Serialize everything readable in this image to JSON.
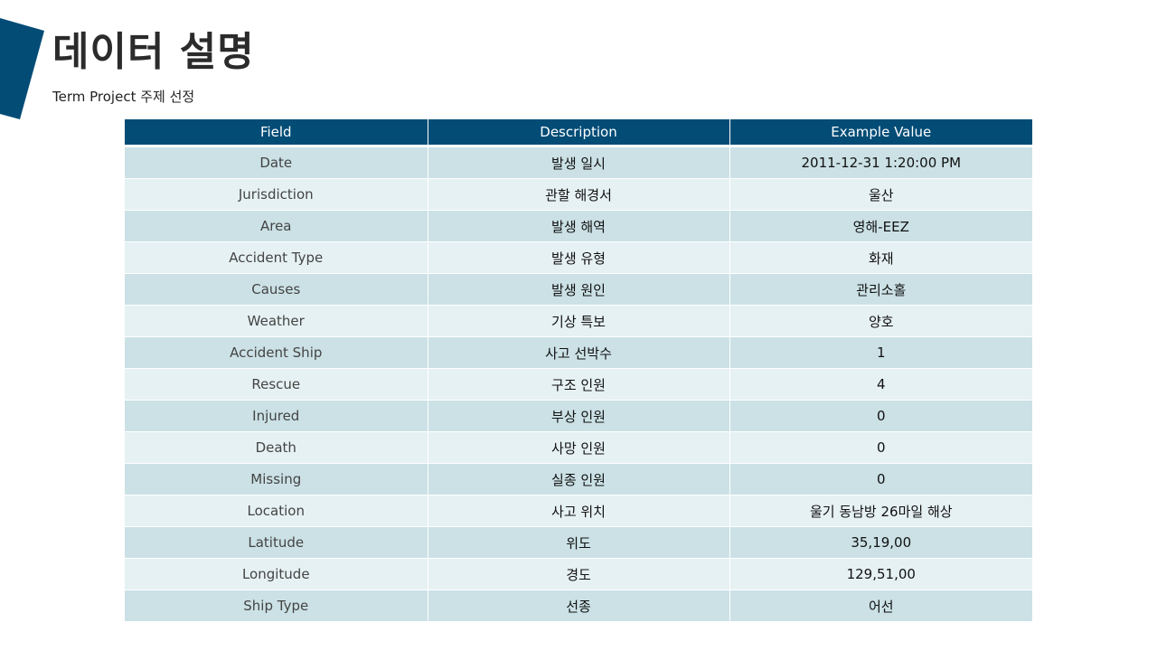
{
  "slide": {
    "title": "데이터 설명",
    "subtitle": "Term Project 주제 선정",
    "accent_color": "#024c76"
  },
  "table": {
    "headers": [
      "Field",
      "Description",
      "Example Value"
    ],
    "rows": [
      {
        "field": "Date",
        "description": "발생 일시",
        "example": "2011-12-31  1:20:00 PM"
      },
      {
        "field": "Jurisdiction",
        "description": "관할 해경서",
        "example": "울산"
      },
      {
        "field": "Area",
        "description": "발생 해역",
        "example": "영해-EEZ"
      },
      {
        "field": "Accident Type",
        "description": "발생 유형",
        "example": "화재"
      },
      {
        "field": "Causes",
        "description": "발생 원인",
        "example": "관리소홀"
      },
      {
        "field": "Weather",
        "description": "기상 특보",
        "example": "양호"
      },
      {
        "field": "Accident Ship",
        "description": "사고 선박수",
        "example": "1"
      },
      {
        "field": "Rescue",
        "description": "구조 인원",
        "example": "4"
      },
      {
        "field": "Injured",
        "description": "부상 인원",
        "example": "0"
      },
      {
        "field": "Death",
        "description": "사망 인원",
        "example": "0"
      },
      {
        "field": "Missing",
        "description": "실종 인원",
        "example": "0"
      },
      {
        "field": "Location",
        "description": "사고 위치",
        "example": "울기 동남방 26마일 해상"
      },
      {
        "field": "Latitude",
        "description": "위도",
        "example": "35,19,00"
      },
      {
        "field": "Longitude",
        "description": "경도",
        "example": "129,51,00"
      },
      {
        "field": "Ship Type",
        "description": "선종",
        "example": "어선"
      }
    ]
  }
}
